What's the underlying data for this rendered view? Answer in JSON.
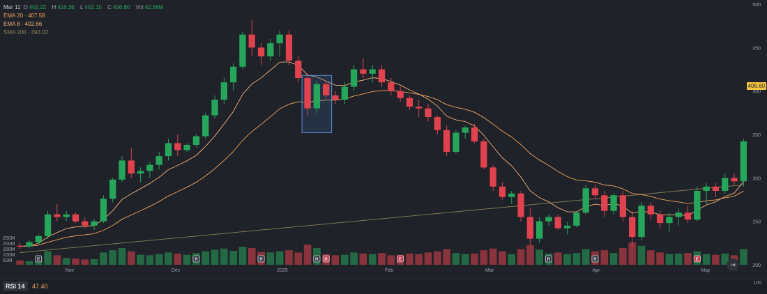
{
  "legend": {
    "date": "Mar 11",
    "open_label": "O",
    "open": "402.22",
    "high_label": "H",
    "high": "416.36",
    "low_label": "L",
    "low": "402.15",
    "close_label": "C",
    "close": "406.60",
    "vol_label": "Vol",
    "vol": "42.56M",
    "ema20_label": "EMA 20 · 407.58",
    "ema8_label": "EMA 8 · 402.66",
    "sma200_label": "SMA 200 · 393.02"
  },
  "price_tag": "406.60",
  "rsi": {
    "label": "RSI 14",
    "value": "47.40",
    "axis_top": "100"
  },
  "goto_realtime_icon": "skip-to-end-icon",
  "colors": {
    "up": "#26a65b",
    "down": "#e0424e",
    "ema20": "#f0a35e",
    "ema8": "#f3b07a",
    "sma200": "#8a8058",
    "background": "#1f2229"
  },
  "chart_data": {
    "type": "candlestick",
    "y_axis": {
      "ticks": [
        "500",
        "450",
        "400",
        "350",
        "300",
        "250",
        "200"
      ],
      "ylim": [
        200,
        500
      ]
    },
    "x_axis": {
      "ticks": [
        "Nov",
        "Dec",
        "2025",
        "Feb",
        "Mar",
        "Apr",
        "May"
      ]
    },
    "volume_axis": {
      "ticks": [
        "250M",
        "200M",
        "150M",
        "100M",
        "50M"
      ]
    },
    "candles": [
      [
        222,
        225,
        218,
        221
      ],
      [
        221,
        228,
        219,
        226
      ],
      [
        226,
        235,
        224,
        233
      ],
      [
        233,
        262,
        230,
        258
      ],
      [
        258,
        270,
        250,
        255
      ],
      [
        255,
        262,
        250,
        258
      ],
      [
        258,
        260,
        248,
        250
      ],
      [
        250,
        255,
        242,
        245
      ],
      [
        245,
        252,
        240,
        250
      ],
      [
        250,
        280,
        248,
        276
      ],
      [
        276,
        300,
        272,
        298
      ],
      [
        298,
        325,
        295,
        320
      ],
      [
        320,
        335,
        300,
        305
      ],
      [
        305,
        312,
        295,
        308
      ],
      [
        308,
        318,
        300,
        315
      ],
      [
        315,
        330,
        310,
        325
      ],
      [
        325,
        345,
        320,
        340
      ],
      [
        340,
        350,
        325,
        332
      ],
      [
        332,
        340,
        330,
        338
      ],
      [
        338,
        350,
        335,
        348
      ],
      [
        348,
        375,
        345,
        372
      ],
      [
        372,
        395,
        368,
        390
      ],
      [
        390,
        415,
        385,
        410
      ],
      [
        410,
        432,
        400,
        428
      ],
      [
        428,
        468,
        425,
        465
      ],
      [
        465,
        482,
        440,
        450
      ],
      [
        450,
        455,
        430,
        440
      ],
      [
        440,
        460,
        435,
        455
      ],
      [
        455,
        470,
        440,
        465
      ],
      [
        465,
        470,
        430,
        435
      ],
      [
        435,
        440,
        410,
        415
      ],
      [
        415,
        420,
        372,
        380
      ],
      [
        380,
        412,
        375,
        408
      ],
      [
        408,
        412,
        392,
        395
      ],
      [
        395,
        400,
        385,
        390
      ],
      [
        390,
        410,
        385,
        405
      ],
      [
        405,
        430,
        400,
        425
      ],
      [
        425,
        438,
        415,
        420
      ],
      [
        420,
        430,
        410,
        425
      ],
      [
        425,
        430,
        405,
        410
      ],
      [
        410,
        415,
        395,
        400
      ],
      [
        400,
        405,
        388,
        392
      ],
      [
        392,
        395,
        378,
        382
      ],
      [
        382,
        390,
        370,
        380
      ],
      [
        380,
        385,
        365,
        370
      ],
      [
        370,
        372,
        350,
        355
      ],
      [
        355,
        360,
        325,
        330
      ],
      [
        330,
        355,
        328,
        352
      ],
      [
        352,
        360,
        345,
        358
      ],
      [
        358,
        362,
        340,
        342
      ],
      [
        342,
        345,
        310,
        312
      ],
      [
        312,
        315,
        285,
        290
      ],
      [
        290,
        295,
        275,
        278
      ],
      [
        278,
        285,
        270,
        282
      ],
      [
        282,
        285,
        250,
        255
      ],
      [
        255,
        265,
        222,
        230
      ],
      [
        230,
        255,
        225,
        250
      ],
      [
        250,
        258,
        245,
        255
      ],
      [
        255,
        258,
        240,
        242
      ],
      [
        242,
        250,
        235,
        245
      ],
      [
        245,
        262,
        243,
        260
      ],
      [
        260,
        292,
        258,
        288
      ],
      [
        288,
        292,
        275,
        280
      ],
      [
        280,
        285,
        255,
        262
      ],
      [
        262,
        282,
        258,
        280
      ],
      [
        280,
        285,
        250,
        255
      ],
      [
        255,
        262,
        220,
        232
      ],
      [
        232,
        272,
        228,
        268
      ],
      [
        268,
        272,
        252,
        258
      ],
      [
        258,
        262,
        242,
        248
      ],
      [
        248,
        260,
        238,
        255
      ],
      [
        255,
        265,
        245,
        260
      ],
      [
        260,
        268,
        248,
        252
      ],
      [
        252,
        290,
        250,
        285
      ],
      [
        285,
        294,
        270,
        290
      ],
      [
        290,
        294,
        278,
        285
      ],
      [
        285,
        305,
        282,
        300
      ],
      [
        300,
        305,
        292,
        296
      ],
      [
        296,
        345,
        290,
        342
      ]
    ],
    "volume": [
      38,
      32,
      30,
      120,
      85,
      60,
      55,
      48,
      50,
      110,
      130,
      150,
      120,
      90,
      85,
      95,
      110,
      100,
      90,
      105,
      120,
      135,
      145,
      125,
      160,
      150,
      115,
      110,
      120,
      130,
      110,
      180,
      150,
      95,
      85,
      90,
      110,
      100,
      95,
      105,
      85,
      90,
      100,
      95,
      110,
      120,
      140,
      105,
      95,
      100,
      130,
      145,
      120,
      95,
      140,
      175,
      135,
      100,
      110,
      95,
      105,
      140,
      120,
      130,
      105,
      150,
      200,
      170,
      130,
      110,
      95,
      100,
      105,
      120,
      95,
      90,
      100,
      85,
      140
    ],
    "series": [
      {
        "name": "EMA 20"
      },
      {
        "name": "EMA 8"
      },
      {
        "name": "SMA 200"
      }
    ],
    "event_markers": [
      {
        "label": "E",
        "type": "earnings",
        "color": "up",
        "x_index": 2
      },
      {
        "label": "R",
        "type": "rating",
        "color": "up",
        "x_index": 19
      },
      {
        "label": "R",
        "type": "rating",
        "color": "up",
        "x_index": 26
      },
      {
        "label": "R",
        "type": "rating",
        "color": "up",
        "x_index": 32
      },
      {
        "label": "R",
        "type": "rating",
        "color": "down",
        "x_index": 33
      },
      {
        "label": "E",
        "type": "earnings",
        "color": "down",
        "x_index": 41
      },
      {
        "label": "R",
        "type": "rating",
        "color": "up",
        "x_index": 57
      },
      {
        "label": "R",
        "type": "rating",
        "color": "up",
        "x_index": 62
      },
      {
        "label": "E",
        "type": "earnings",
        "color": "down",
        "x_index": 73
      }
    ],
    "highlight": {
      "x_index_range": [
        31,
        33
      ],
      "y_range": [
        352,
        418
      ]
    },
    "grid": false
  }
}
